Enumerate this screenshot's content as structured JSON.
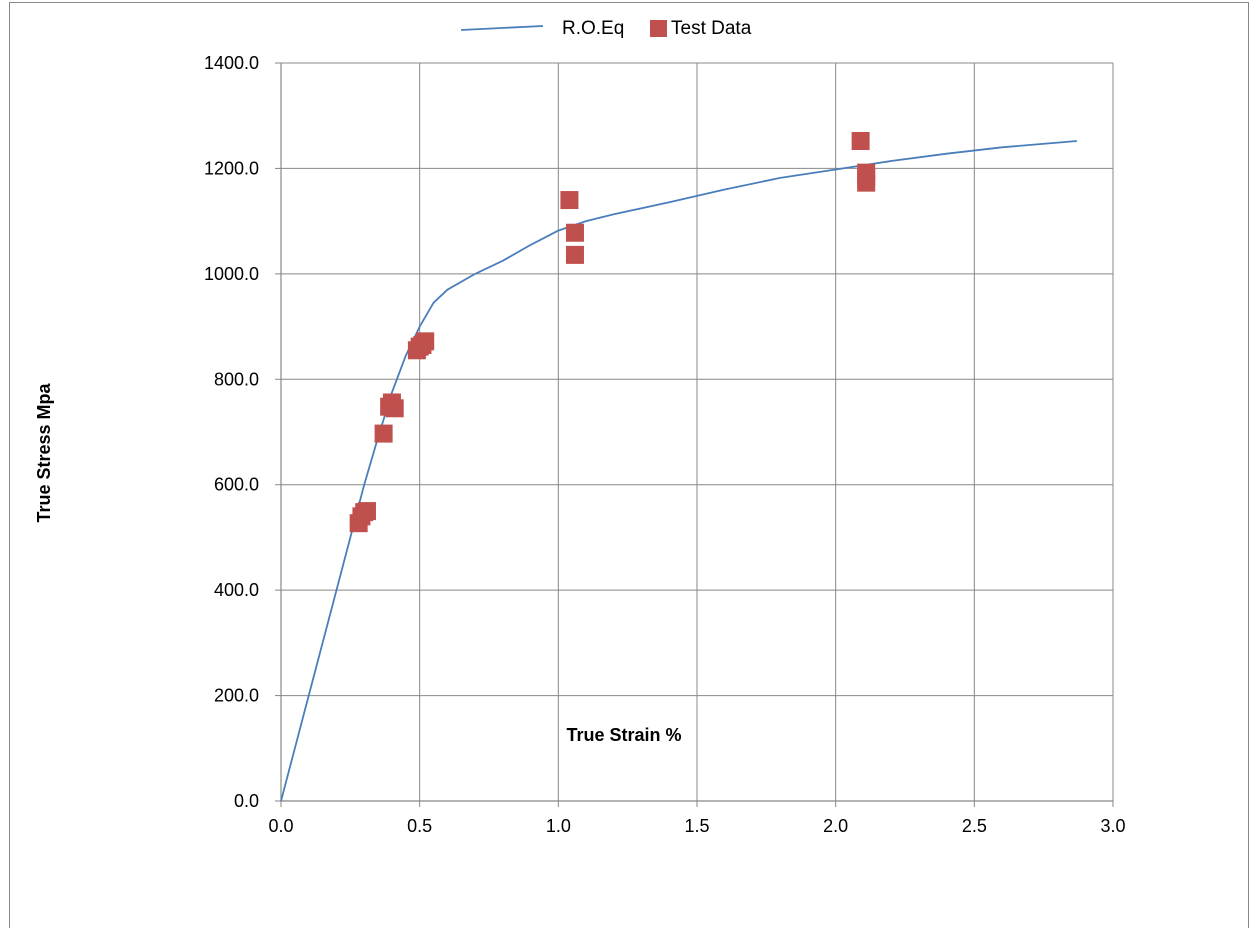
{
  "chart_data": {
    "type": "scatter",
    "title": "",
    "xlabel": "True Strain %",
    "ylabel": "True Stress Mpa",
    "xlim": [
      0,
      3
    ],
    "ylim": [
      0,
      1400
    ],
    "x_ticks": [
      0,
      0.5,
      1.0,
      1.5,
      2.0,
      2.5,
      3.0
    ],
    "x_tick_labels": [
      "0.0",
      "0.5",
      "1.0",
      "1.5",
      "2.0",
      "2.5",
      "3.0"
    ],
    "y_ticks": [
      0,
      200,
      400,
      600,
      800,
      1000,
      1200,
      1400
    ],
    "y_tick_labels": [
      "0.0",
      "200.0",
      "400.0",
      "600.0",
      "800.0",
      "1000.0",
      "1200.0",
      "1400.0"
    ],
    "grid": true,
    "legend_position": "top-center",
    "series": [
      {
        "name": "R.O.Eq",
        "kind": "line",
        "color": "#4A7EBB",
        "x": [
          0,
          0.1,
          0.2,
          0.3,
          0.35,
          0.4,
          0.45,
          0.5,
          0.55,
          0.6,
          0.7,
          0.8,
          0.9,
          1.0,
          1.1,
          1.2,
          1.4,
          1.6,
          1.8,
          2.0,
          2.2,
          2.4,
          2.6,
          2.87
        ],
        "y": [
          0,
          200,
          400,
          600,
          690,
          775,
          845,
          900,
          945,
          970,
          1000,
          1025,
          1055,
          1082,
          1100,
          1113,
          1136,
          1160,
          1182,
          1198,
          1214,
          1228,
          1240,
          1252
        ]
      },
      {
        "name": "Test Data",
        "kind": "scatter",
        "color": "#C0504D",
        "x": [
          0.28,
          0.29,
          0.3,
          0.31,
          0.37,
          0.39,
          0.4,
          0.41,
          0.49,
          0.5,
          0.51,
          0.52,
          1.04,
          1.06,
          1.06,
          2.09,
          2.11,
          2.11,
          2.11
        ],
        "y": [
          527,
          540,
          548,
          550,
          697,
          748,
          756,
          745,
          855,
          862,
          865,
          872,
          1140,
          1078,
          1036,
          1252,
          1192,
          1183,
          1173
        ]
      }
    ]
  }
}
